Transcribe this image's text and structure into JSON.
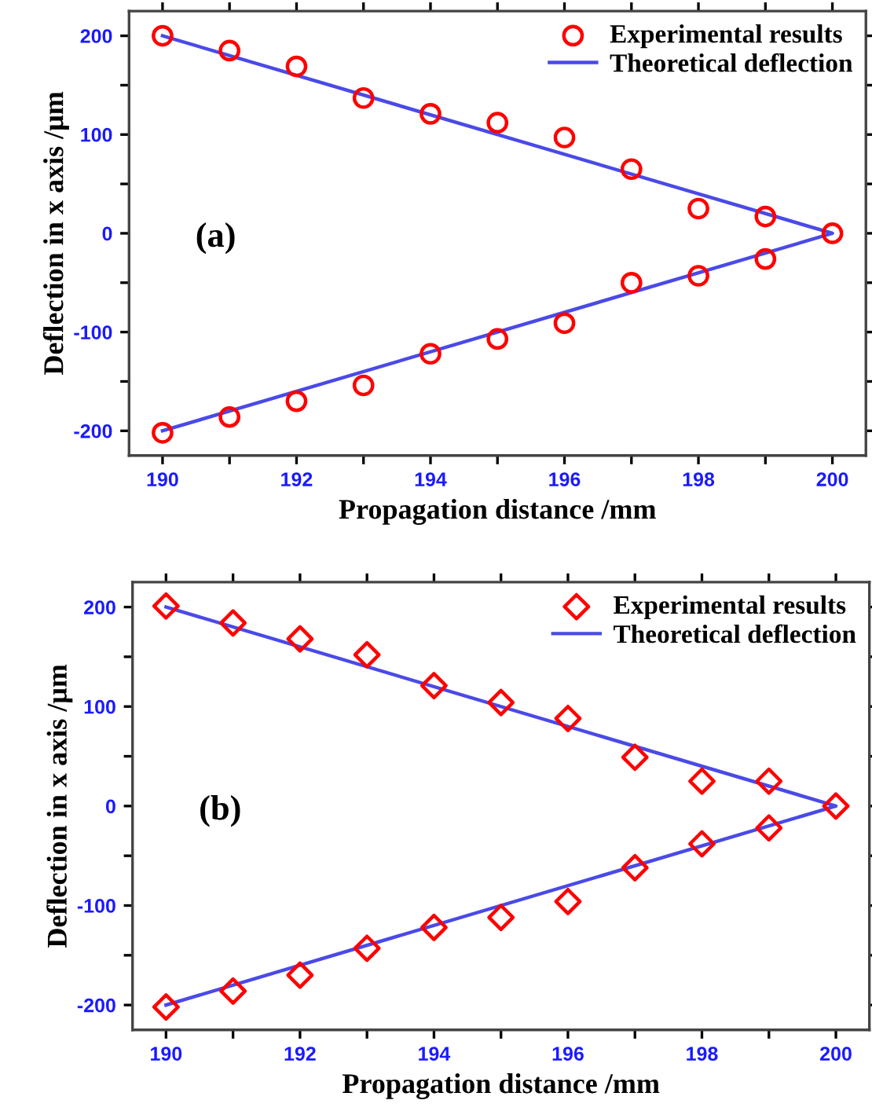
{
  "chart_data": [
    {
      "type": "scatter",
      "xlabel": "Propagation distance /mm",
      "ylabel": "Deflection in x axis /μm",
      "annotations": [
        "(a)"
      ],
      "xlim": [
        189.5,
        200.5
      ],
      "ylim": [
        -225,
        225
      ],
      "xticks": [
        190,
        {
          "value": 191,
          "label": null
        },
        192,
        {
          "value": 193,
          "label": null
        },
        194,
        {
          "value": 195,
          "label": null
        },
        196,
        {
          "value": 197,
          "label": null
        },
        198,
        {
          "value": 199,
          "label": null
        },
        200
      ],
      "yticks": [
        -200,
        {
          "value": -150,
          "label": null
        },
        -100,
        {
          "value": -50,
          "label": null
        },
        0,
        {
          "value": 50,
          "label": null
        },
        100,
        {
          "value": 150,
          "label": null
        },
        200
      ],
      "legend": "top right",
      "grid": false,
      "series": [
        {
          "name": "Experimental results",
          "marker": "circle",
          "color": "#ff0000",
          "x": [
            190,
            191,
            192,
            193,
            194,
            195,
            196,
            197,
            198,
            199,
            200,
            190,
            191,
            192,
            193,
            194,
            195,
            196,
            197,
            198,
            199
          ],
          "values": [
            200,
            185,
            169,
            137,
            121,
            112,
            97,
            65,
            25,
            17,
            0,
            -202,
            -186,
            -170,
            -154,
            -122,
            -107,
            -91,
            -50,
            -43,
            -26
          ]
        },
        {
          "name": "Theoretical deflection",
          "type": "line",
          "line_style": "solid",
          "color": "#4a4ae8",
          "x": [
            190,
            200,
            190
          ],
          "values": [
            200,
            0,
            -200
          ]
        }
      ]
    },
    {
      "type": "scatter",
      "xlabel": "Propagation distance /mm",
      "ylabel": "Deflection in x axis /μm",
      "annotations": [
        "(b)"
      ],
      "xlim": [
        189.5,
        200.5
      ],
      "ylim": [
        -225,
        225
      ],
      "xticks": [
        190,
        {
          "value": 191,
          "label": null
        },
        192,
        {
          "value": 193,
          "label": null
        },
        194,
        {
          "value": 195,
          "label": null
        },
        196,
        {
          "value": 197,
          "label": null
        },
        198,
        {
          "value": 199,
          "label": null
        },
        200
      ],
      "yticks": [
        -200,
        {
          "value": -150,
          "label": null
        },
        -100,
        {
          "value": -50,
          "label": null
        },
        0,
        {
          "value": 50,
          "label": null
        },
        100,
        {
          "value": 150,
          "label": null
        },
        200
      ],
      "legend": "top right",
      "grid": false,
      "series": [
        {
          "name": "Experimental results",
          "marker": "diamond",
          "color": "#ff0000",
          "x": [
            190,
            191,
            192,
            193,
            194,
            195,
            196,
            197,
            198,
            199,
            200,
            190,
            191,
            192,
            193,
            194,
            195,
            196,
            197,
            198,
            199
          ],
          "values": [
            201,
            184,
            168,
            152,
            121,
            104,
            88,
            49,
            25,
            25,
            0,
            -202,
            -186,
            -170,
            -143,
            -122,
            -112,
            -96,
            -62,
            -38,
            -22
          ]
        },
        {
          "name": "Theoretical deflection",
          "type": "line",
          "line_style": "solid",
          "color": "#4a4ae8",
          "x": [
            190,
            200,
            190
          ],
          "values": [
            200,
            0,
            -200
          ]
        }
      ]
    }
  ]
}
